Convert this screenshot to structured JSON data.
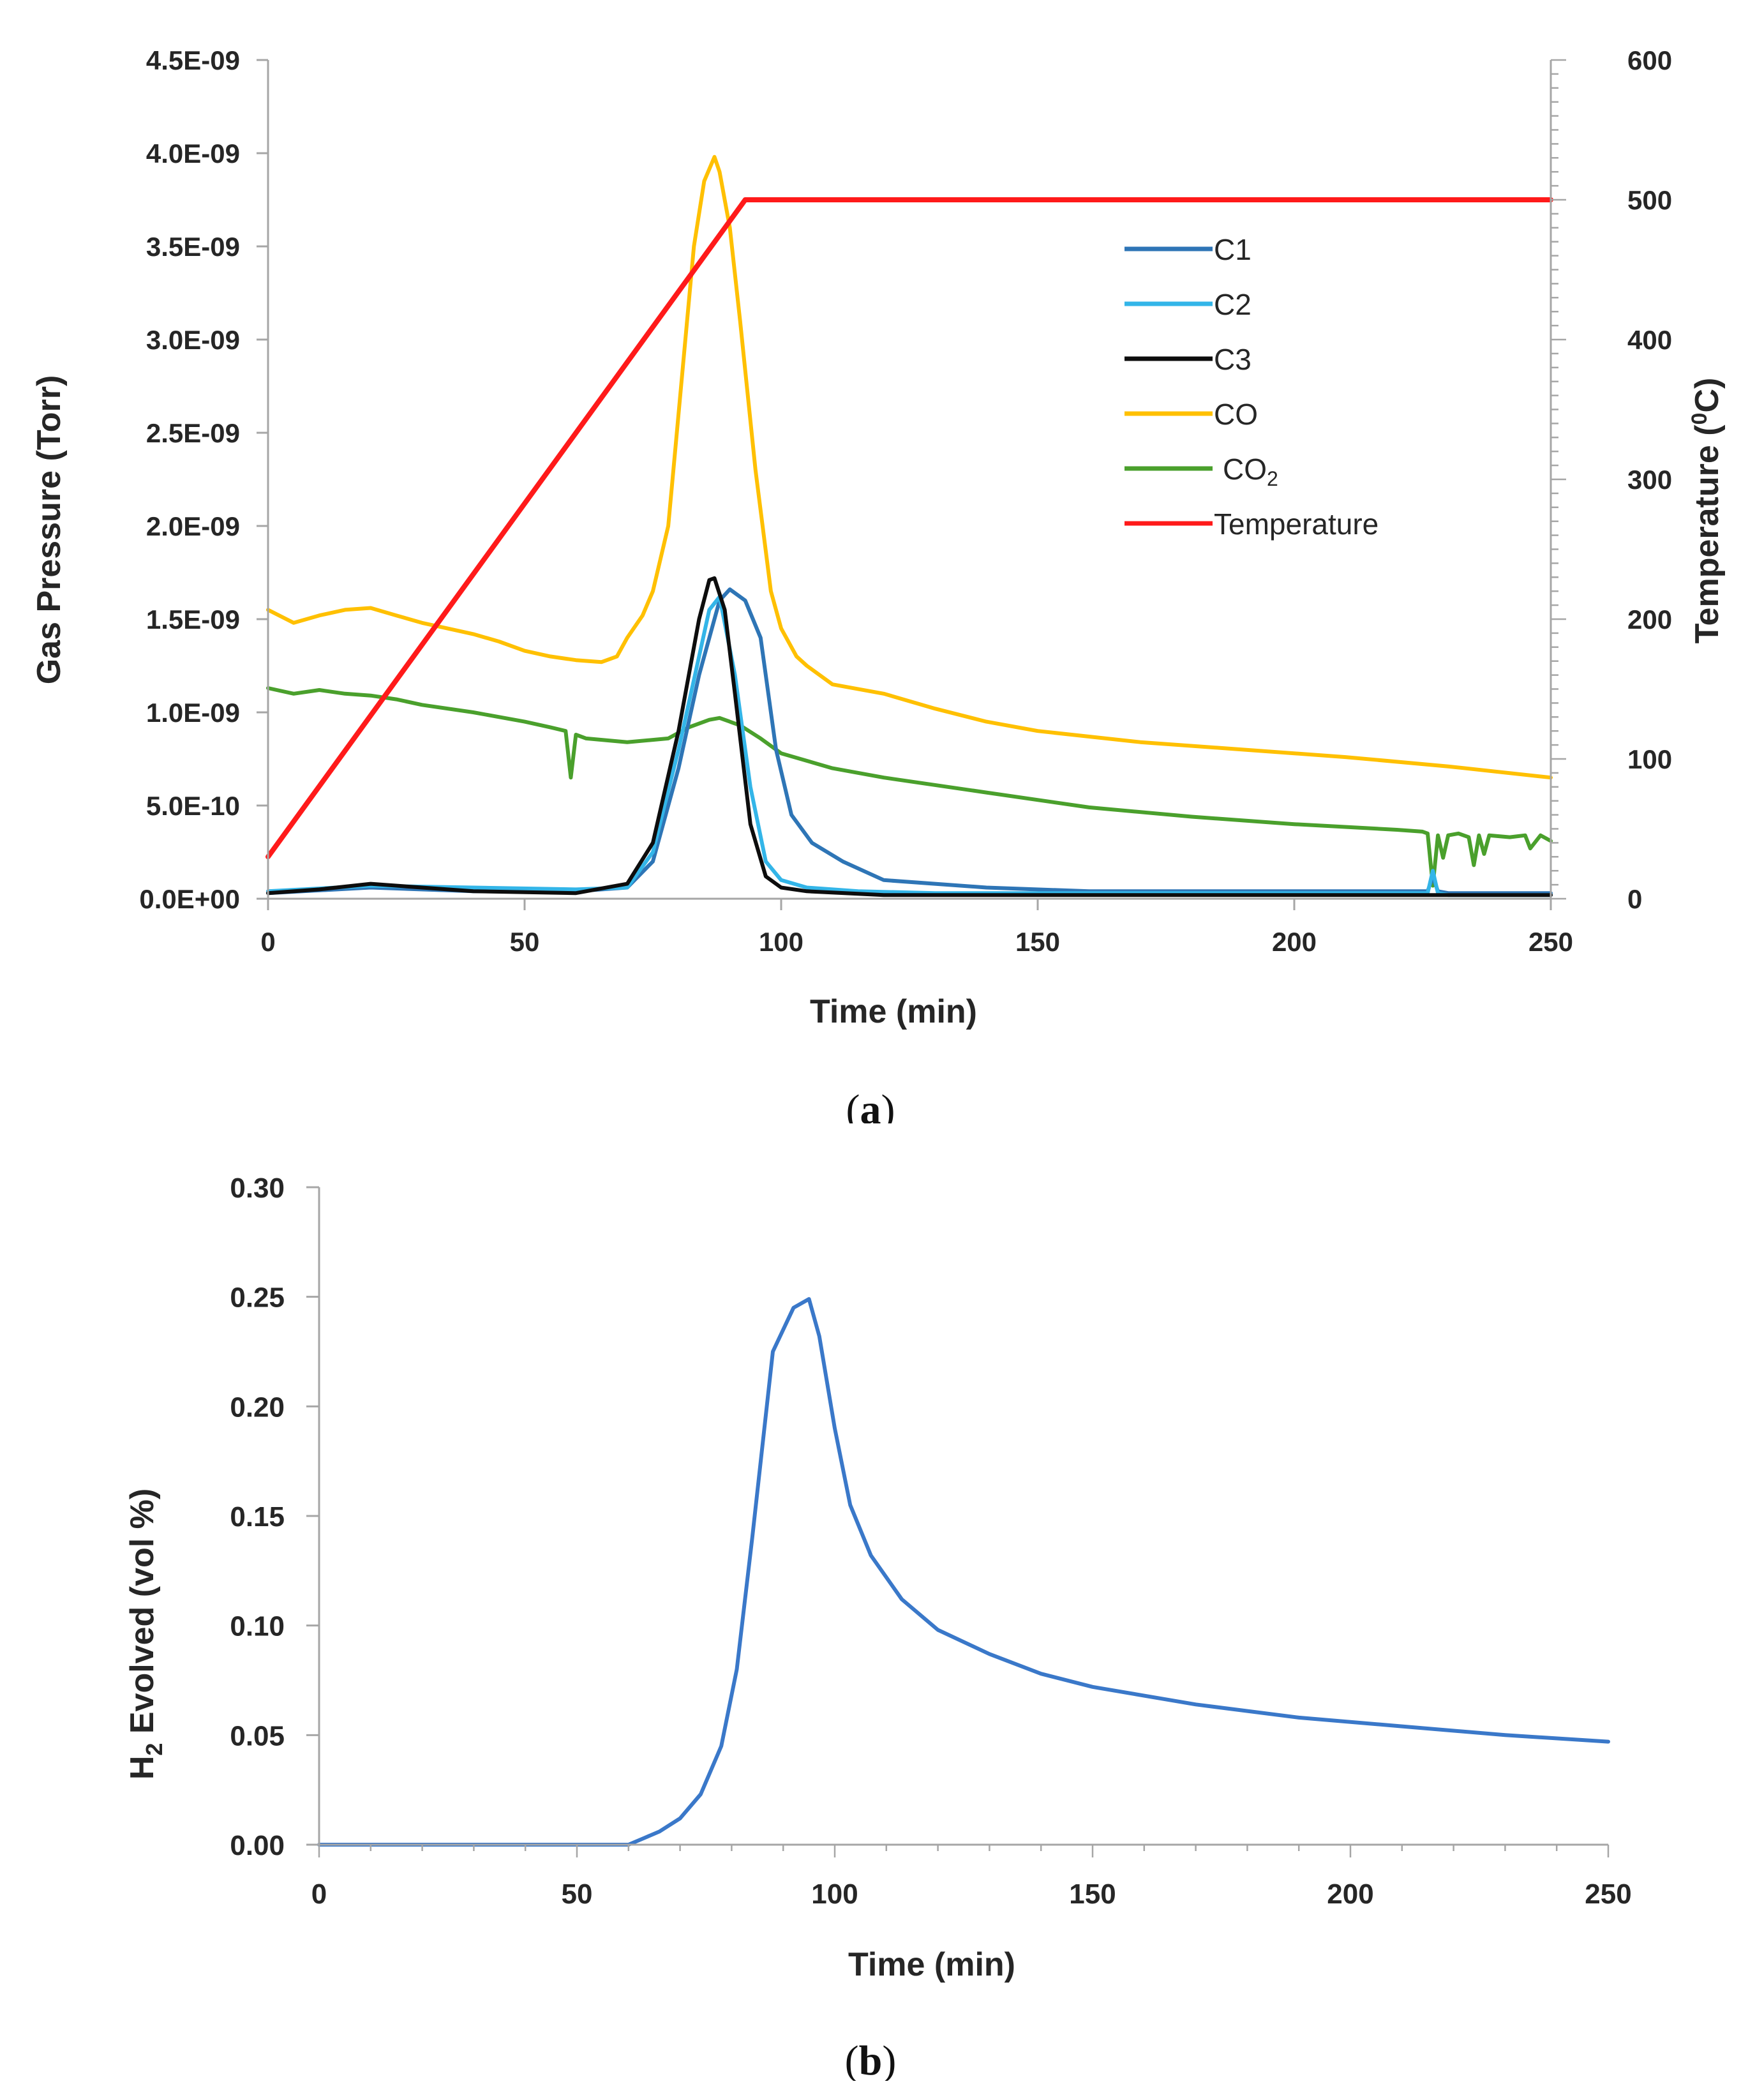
{
  "colors": {
    "C1": "#2e75b6",
    "C2": "#33b5e8",
    "C3": "#0d0d0d",
    "CO": "#ffc000",
    "CO2": "#4aa02c",
    "Temperature": "#ff1a1a",
    "H2": "#3a78c9",
    "axis": "#a6a6a6",
    "text": "#262626"
  },
  "chart_data": [
    {
      "type": "line",
      "panel_label": "a",
      "xlabel": "Time (min)",
      "ylabel": "Gas Pressure (Torr)",
      "ylabel2_main": "Temperature (",
      "ylabel2_sup": "0",
      "ylabel2_end": "C)",
      "xlim": [
        0,
        250
      ],
      "ylim": [
        0,
        4.5e-09
      ],
      "y2lim": [
        0,
        600
      ],
      "xticks": [
        "0",
        "50",
        "100",
        "150",
        "200",
        "250"
      ],
      "yticks": [
        "0.0E+00",
        "5.0E-10",
        "1.0E-09",
        "1.5E-09",
        "2.0E-09",
        "2.5E-09",
        "3.0E-09",
        "3.5E-09",
        "4.0E-09",
        "4.5E-09"
      ],
      "y2ticks": [
        "0",
        "100",
        "200",
        "300",
        "400",
        "500",
        "600"
      ],
      "legend": [
        {
          "key": "C1",
          "label": "C1"
        },
        {
          "key": "C2",
          "label": "C2"
        },
        {
          "key": "C3",
          "label": "C3"
        },
        {
          "key": "CO",
          "label": "CO"
        },
        {
          "key": "CO2",
          "label": "CO",
          "sub": "2"
        },
        {
          "key": "Temperature",
          "label": "Temperature"
        }
      ],
      "series": [
        {
          "name": "C1",
          "axis": "left",
          "x": [
            0,
            20,
            40,
            60,
            70,
            75,
            80,
            84,
            88,
            90,
            93,
            96,
            99,
            102,
            106,
            112,
            120,
            140,
            160,
            200,
            226,
            227,
            228,
            230,
            250
          ],
          "values": [
            3e-11,
            6e-11,
            4e-11,
            4e-11,
            6e-11,
            2e-10,
            7e-10,
            1.2e-09,
            1.6e-09,
            1.66e-09,
            1.6e-09,
            1.4e-09,
            8e-10,
            4.5e-10,
            3e-10,
            2e-10,
            1e-10,
            6e-11,
            4e-11,
            4e-11,
            4e-11,
            1.2e-10,
            4e-11,
            3e-11,
            3e-11
          ]
        },
        {
          "name": "C2",
          "axis": "left",
          "x": [
            0,
            20,
            40,
            60,
            70,
            75,
            80,
            84,
            86,
            88,
            91,
            94,
            97,
            100,
            105,
            115,
            130,
            160,
            200,
            226,
            227,
            228,
            230,
            250
          ],
          "values": [
            4e-11,
            7e-11,
            6e-11,
            5e-11,
            6e-11,
            2.5e-10,
            8e-10,
            1.3e-09,
            1.55e-09,
            1.62e-09,
            1.2e-09,
            6e-10,
            2e-10,
            1e-10,
            6e-11,
            4e-11,
            3e-11,
            3e-11,
            3e-11,
            3e-11,
            1.5e-10,
            3e-11,
            2e-11,
            2e-11
          ]
        },
        {
          "name": "C3",
          "axis": "left",
          "x": [
            0,
            10,
            20,
            30,
            40,
            60,
            70,
            75,
            80,
            84,
            86,
            87,
            89,
            91,
            94,
            97,
            100,
            105,
            120,
            160,
            200,
            250
          ],
          "values": [
            3e-11,
            5e-11,
            8e-11,
            6e-11,
            4e-11,
            3e-11,
            8e-11,
            3e-10,
            9e-10,
            1.5e-09,
            1.71e-09,
            1.72e-09,
            1.55e-09,
            1.1e-09,
            4e-10,
            1.2e-10,
            6e-11,
            4e-11,
            2e-11,
            2e-11,
            2e-11,
            2e-11
          ]
        },
        {
          "name": "CO",
          "axis": "left",
          "x": [
            0,
            5,
            10,
            15,
            20,
            25,
            30,
            35,
            40,
            45,
            50,
            55,
            60,
            65,
            68,
            70,
            73,
            75,
            78,
            80,
            83,
            85,
            87,
            88,
            90,
            92,
            95,
            98,
            100,
            103,
            105,
            110,
            120,
            130,
            140,
            150,
            170,
            190,
            210,
            230,
            250
          ],
          "values": [
            1.55e-09,
            1.48e-09,
            1.52e-09,
            1.55e-09,
            1.56e-09,
            1.52e-09,
            1.48e-09,
            1.45e-09,
            1.42e-09,
            1.38e-09,
            1.33e-09,
            1.3e-09,
            1.28e-09,
            1.27e-09,
            1.3e-09,
            1.4e-09,
            1.52e-09,
            1.65e-09,
            2e-09,
            2.6e-09,
            3.5e-09,
            3.85e-09,
            3.98e-09,
            3.9e-09,
            3.6e-09,
            3.1e-09,
            2.3e-09,
            1.65e-09,
            1.45e-09,
            1.3e-09,
            1.25e-09,
            1.15e-09,
            1.1e-09,
            1.02e-09,
            9.5e-10,
            9e-10,
            8.4e-10,
            8e-10,
            7.6e-10,
            7.1e-10,
            6.5e-10
          ]
        },
        {
          "name": "CO2",
          "axis": "left",
          "x": [
            0,
            5,
            10,
            15,
            20,
            25,
            30,
            40,
            50,
            55,
            58,
            59,
            60,
            62,
            70,
            78,
            82,
            86,
            88,
            92,
            96,
            100,
            110,
            120,
            140,
            160,
            180,
            200,
            220,
            225,
            226,
            227,
            228,
            229,
            230,
            232,
            234,
            235,
            236,
            237,
            238,
            242,
            245,
            246,
            248,
            250
          ],
          "values": [
            1.13e-09,
            1.1e-09,
            1.12e-09,
            1.1e-09,
            1.09e-09,
            1.07e-09,
            1.04e-09,
            1e-09,
            9.5e-10,
            9.2e-10,
            9e-10,
            6.5e-10,
            8.8e-10,
            8.6e-10,
            8.4e-10,
            8.6e-10,
            9.2e-10,
            9.6e-10,
            9.7e-10,
            9.3e-10,
            8.6e-10,
            7.8e-10,
            7e-10,
            6.5e-10,
            5.7e-10,
            4.9e-10,
            4.4e-10,
            4e-10,
            3.7e-10,
            3.6e-10,
            3.5e-10,
            7e-11,
            3.4e-10,
            2.2e-10,
            3.4e-10,
            3.5e-10,
            3.3e-10,
            1.8e-10,
            3.4e-10,
            2.4e-10,
            3.4e-10,
            3.3e-10,
            3.4e-10,
            2.7e-10,
            3.4e-10,
            3.1e-10
          ]
        },
        {
          "name": "Temperature",
          "axis": "right",
          "x": [
            0,
            93,
            250
          ],
          "values": [
            30,
            500,
            500
          ]
        }
      ]
    },
    {
      "type": "line",
      "panel_label": "b",
      "xlabel": "Time (min)",
      "ylabel_pre": "H",
      "ylabel_sub": "2",
      "ylabel_post": " Evolved (vol %)",
      "xlim": [
        0,
        250
      ],
      "ylim": [
        0,
        0.3
      ],
      "xticks": [
        "0",
        "50",
        "100",
        "150",
        "200",
        "250"
      ],
      "yticks": [
        "0.00",
        "0.05",
        "0.10",
        "0.15",
        "0.20",
        "0.25",
        "0.30"
      ],
      "series": [
        {
          "name": "H2",
          "x": [
            0,
            60,
            63,
            66,
            70,
            74,
            78,
            81,
            84,
            88,
            92,
            95,
            97,
            100,
            103,
            107,
            113,
            120,
            130,
            140,
            150,
            170,
            190,
            210,
            230,
            250
          ],
          "values": [
            0.0,
            0.0,
            0.003,
            0.006,
            0.012,
            0.023,
            0.045,
            0.08,
            0.14,
            0.225,
            0.245,
            0.249,
            0.232,
            0.19,
            0.155,
            0.132,
            0.112,
            0.098,
            0.087,
            0.078,
            0.072,
            0.064,
            0.058,
            0.054,
            0.05,
            0.047
          ]
        }
      ]
    }
  ]
}
